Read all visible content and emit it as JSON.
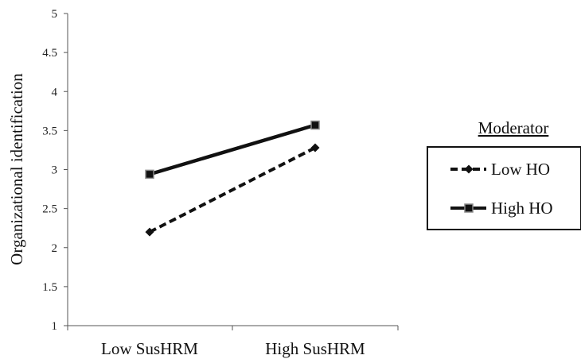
{
  "chart_data": {
    "type": "line",
    "categories": [
      "Low SusHRM",
      "High SusHRM"
    ],
    "ylabel": "Organizational  identification",
    "ylim": [
      1,
      5
    ],
    "yticks": [
      "1",
      "1.5",
      "2",
      "2.5",
      "3",
      "3.5",
      "4",
      "4.5",
      "5"
    ],
    "grid": false,
    "legend": {
      "title": "Moderator",
      "position": "right"
    },
    "series": [
      {
        "name": "Low HO",
        "values": [
          2.2,
          3.28
        ],
        "line_style": "dashed",
        "marker": "diamond",
        "color": "#111111"
      },
      {
        "name": "High HO",
        "values": [
          2.94,
          3.57
        ],
        "line_style": "solid",
        "marker": "square",
        "color": "#111111"
      }
    ]
  }
}
